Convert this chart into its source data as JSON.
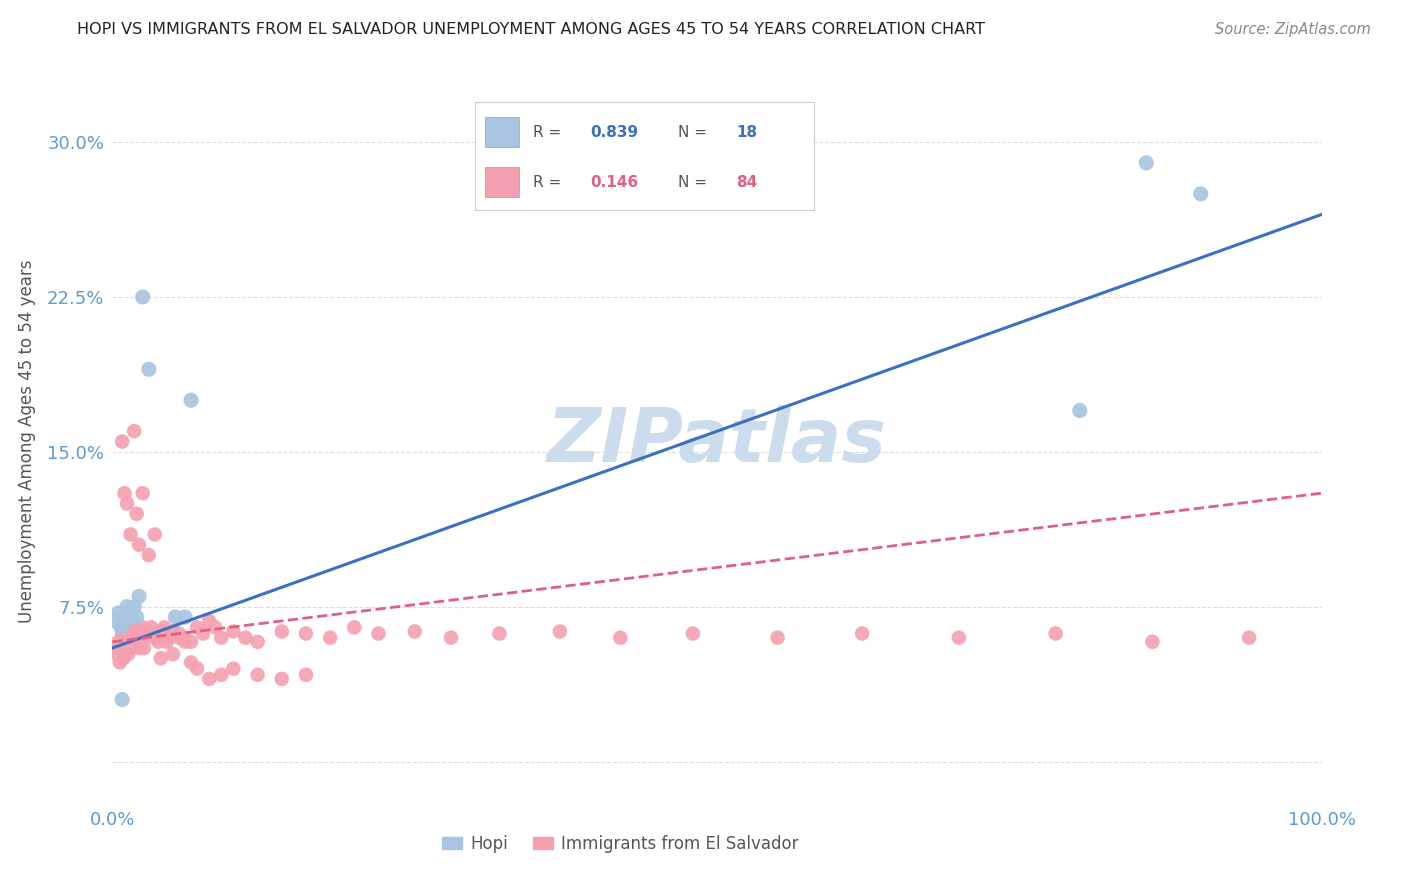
{
  "title": "HOPI VS IMMIGRANTS FROM EL SALVADOR UNEMPLOYMENT AMONG AGES 45 TO 54 YEARS CORRELATION CHART",
  "source": "Source: ZipAtlas.com",
  "ylabel": "Unemployment Among Ages 45 to 54 years",
  "xlim": [
    0,
    1.0
  ],
  "ylim": [
    -0.02,
    0.33
  ],
  "yticks": [
    0.0,
    0.075,
    0.15,
    0.225,
    0.3
  ],
  "ytick_labels": [
    "",
    "7.5%",
    "15.0%",
    "22.5%",
    "30.0%"
  ],
  "xticks": [
    0.0,
    0.25,
    0.5,
    0.75,
    1.0
  ],
  "xtick_labels": [
    "0.0%",
    "",
    "",
    "",
    "100.0%"
  ],
  "hopi_R": 0.839,
  "hopi_N": 18,
  "salvador_R": 0.146,
  "salvador_N": 84,
  "hopi_color": "#a8c4e0",
  "salvador_color": "#f4a0b0",
  "hopi_line_color": "#3a6fc4",
  "salvador_line_color": "#e06080",
  "watermark": "ZIPatlas",
  "watermark_color": "#ccdcec",
  "background_color": "#ffffff",
  "grid_color": "#dddddd",
  "hopi_line_start_x": 0.0,
  "hopi_line_start_y": 0.055,
  "hopi_line_end_x": 1.0,
  "hopi_line_end_y": 0.265,
  "sal_line_start_x": 0.0,
  "sal_line_start_y": 0.058,
  "sal_line_end_x": 1.0,
  "sal_line_end_y": 0.13,
  "hopi_points_x": [
    0.003,
    0.005,
    0.007,
    0.008,
    0.01,
    0.012,
    0.015,
    0.018,
    0.02,
    0.022,
    0.025,
    0.03,
    0.052,
    0.06,
    0.065,
    0.8,
    0.855,
    0.9
  ],
  "hopi_points_y": [
    0.068,
    0.072,
    0.065,
    0.03,
    0.068,
    0.075,
    0.07,
    0.075,
    0.07,
    0.08,
    0.225,
    0.19,
    0.07,
    0.07,
    0.175,
    0.17,
    0.29,
    0.275
  ],
  "salvador_points_x": [
    0.003,
    0.004,
    0.005,
    0.006,
    0.007,
    0.008,
    0.009,
    0.01,
    0.011,
    0.012,
    0.013,
    0.014,
    0.015,
    0.016,
    0.017,
    0.018,
    0.019,
    0.02,
    0.021,
    0.022,
    0.023,
    0.024,
    0.025,
    0.026,
    0.028,
    0.03,
    0.032,
    0.035,
    0.038,
    0.04,
    0.043,
    0.046,
    0.05,
    0.055,
    0.06,
    0.065,
    0.07,
    0.075,
    0.08,
    0.085,
    0.09,
    0.1,
    0.11,
    0.12,
    0.14,
    0.16,
    0.18,
    0.2,
    0.22,
    0.25,
    0.28,
    0.32,
    0.37,
    0.42,
    0.48,
    0.55,
    0.62,
    0.7,
    0.78,
    0.86,
    0.94,
    0.008,
    0.01,
    0.012,
    0.015,
    0.018,
    0.02,
    0.022,
    0.025,
    0.03,
    0.035,
    0.04,
    0.045,
    0.05,
    0.055,
    0.06,
    0.065,
    0.07,
    0.08,
    0.09,
    0.1,
    0.12,
    0.14,
    0.16
  ],
  "salvador_points_y": [
    0.055,
    0.052,
    0.058,
    0.048,
    0.055,
    0.062,
    0.05,
    0.06,
    0.055,
    0.058,
    0.052,
    0.06,
    0.063,
    0.058,
    0.055,
    0.063,
    0.06,
    0.065,
    0.058,
    0.062,
    0.055,
    0.06,
    0.065,
    0.055,
    0.06,
    0.062,
    0.065,
    0.06,
    0.058,
    0.063,
    0.065,
    0.06,
    0.063,
    0.062,
    0.06,
    0.058,
    0.065,
    0.062,
    0.068,
    0.065,
    0.06,
    0.063,
    0.06,
    0.058,
    0.063,
    0.062,
    0.06,
    0.065,
    0.062,
    0.063,
    0.06,
    0.062,
    0.063,
    0.06,
    0.062,
    0.06,
    0.062,
    0.06,
    0.062,
    0.058,
    0.06,
    0.155,
    0.13,
    0.125,
    0.11,
    0.16,
    0.12,
    0.105,
    0.13,
    0.1,
    0.11,
    0.05,
    0.058,
    0.052,
    0.06,
    0.058,
    0.048,
    0.045,
    0.04,
    0.042,
    0.045,
    0.042,
    0.04,
    0.042
  ]
}
